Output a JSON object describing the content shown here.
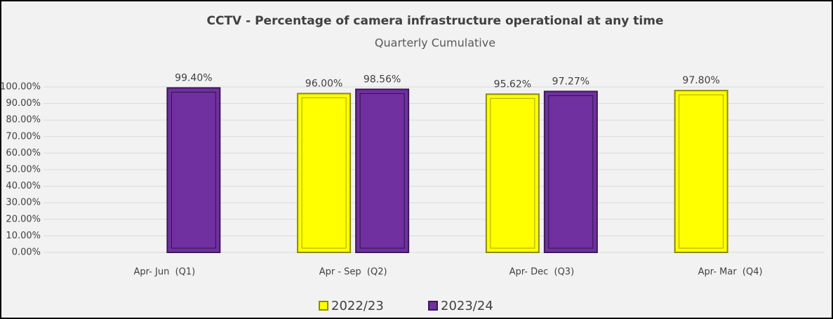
{
  "chart_data": {
    "type": "bar",
    "title": "CCTV - Percentage of camera infrastructure operational at any time",
    "subtitle": "Quarterly Cumulative",
    "categories": [
      "Apr- Jun  (Q1)",
      "Apr - Sep  (Q2)",
      "Apr- Dec  (Q3)",
      "Apr- Mar  (Q4)"
    ],
    "series": [
      {
        "name": "2022/23",
        "color": "#ffff00",
        "values": [
          null,
          96.0,
          95.62,
          97.8
        ],
        "value_labels": [
          null,
          "96.00%",
          "95.62%",
          "97.80%"
        ]
      },
      {
        "name": "2023/24",
        "color": "#7030a0",
        "values": [
          99.4,
          98.56,
          97.27,
          null
        ],
        "value_labels": [
          "99.40%",
          "98.56%",
          "97.27%",
          null
        ]
      }
    ],
    "ylim": [
      0,
      100
    ],
    "yticks": [
      {
        "value": 0,
        "label": "0.00%"
      },
      {
        "value": 10,
        "label": "10.00%"
      },
      {
        "value": 20,
        "label": "20.00%"
      },
      {
        "value": 30,
        "label": "30.00%"
      },
      {
        "value": 40,
        "label": "40.00%"
      },
      {
        "value": 50,
        "label": "50.00%"
      },
      {
        "value": 60,
        "label": "60.00%"
      },
      {
        "value": 70,
        "label": "70.00%"
      },
      {
        "value": 80,
        "label": "80.00%"
      },
      {
        "value": 90,
        "label": "90.00%"
      },
      {
        "value": 100,
        "label": "100.00%"
      }
    ],
    "grid": true,
    "legend": "bottom"
  }
}
